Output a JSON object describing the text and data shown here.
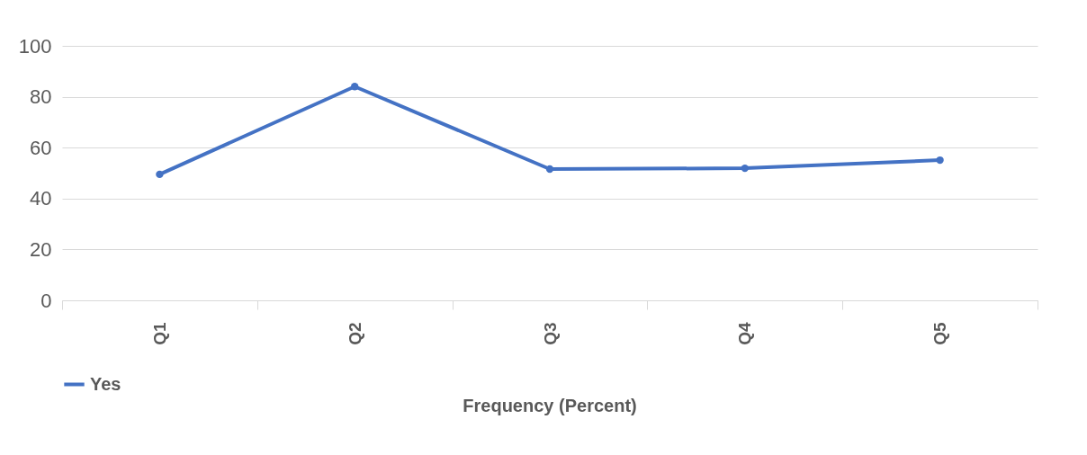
{
  "chart_data": {
    "type": "line",
    "xlabel": "Frequency (Percent)",
    "categories": [
      "Q1",
      "Q2",
      "Q3",
      "Q4",
      "Q5"
    ],
    "series": [
      {
        "name": "Yes",
        "color": "#4472c4",
        "values": [
          49.5,
          84,
          51.6,
          51.9,
          55.1
        ]
      }
    ],
    "ylim": [
      0,
      100
    ],
    "yticks": [
      0,
      20,
      40,
      60,
      80,
      100
    ],
    "grid": "y",
    "legend": "bottom",
    "marker": "circle",
    "line_style": "solid"
  }
}
